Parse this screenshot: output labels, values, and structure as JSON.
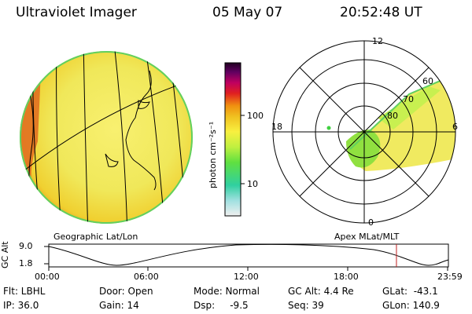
{
  "header": {
    "instrument": "Ultraviolet Imager",
    "date": "05 May 07",
    "time": "20:52:48 UT"
  },
  "colorbar": {
    "unit_label": "photon cm⁻²s⁻¹",
    "ticks": [
      "100",
      "10"
    ]
  },
  "left_panel": {
    "caption": "Geographic Lat/Lon"
  },
  "right_panel": {
    "caption": "Apex MLat/MLT",
    "mlt_labels": {
      "top": "12",
      "left": "18",
      "right": "6",
      "bottom": "0"
    },
    "lat_labels": [
      "60",
      "70",
      "80"
    ]
  },
  "timeline": {
    "ylabel": "GC Alt",
    "y_ticks": [
      "9.0",
      "1.8"
    ],
    "x_ticks": [
      "00:00",
      "06:00",
      "12:00",
      "18:00",
      "23:59"
    ],
    "current_time_fraction": 0.87
  },
  "info": {
    "flt": "Flt: LBHL",
    "ip": "IP: 36.0",
    "door": "Door: Open",
    "gain": "Gain: 14",
    "mode": "Mode: Normal",
    "dsp": "Dsp:     -9.5",
    "gc_alt": "GC Alt: 4.4 Re",
    "seq": "Seq: 39",
    "glat": "GLat:  -43.1",
    "glon": "GLon: 140.9"
  }
}
